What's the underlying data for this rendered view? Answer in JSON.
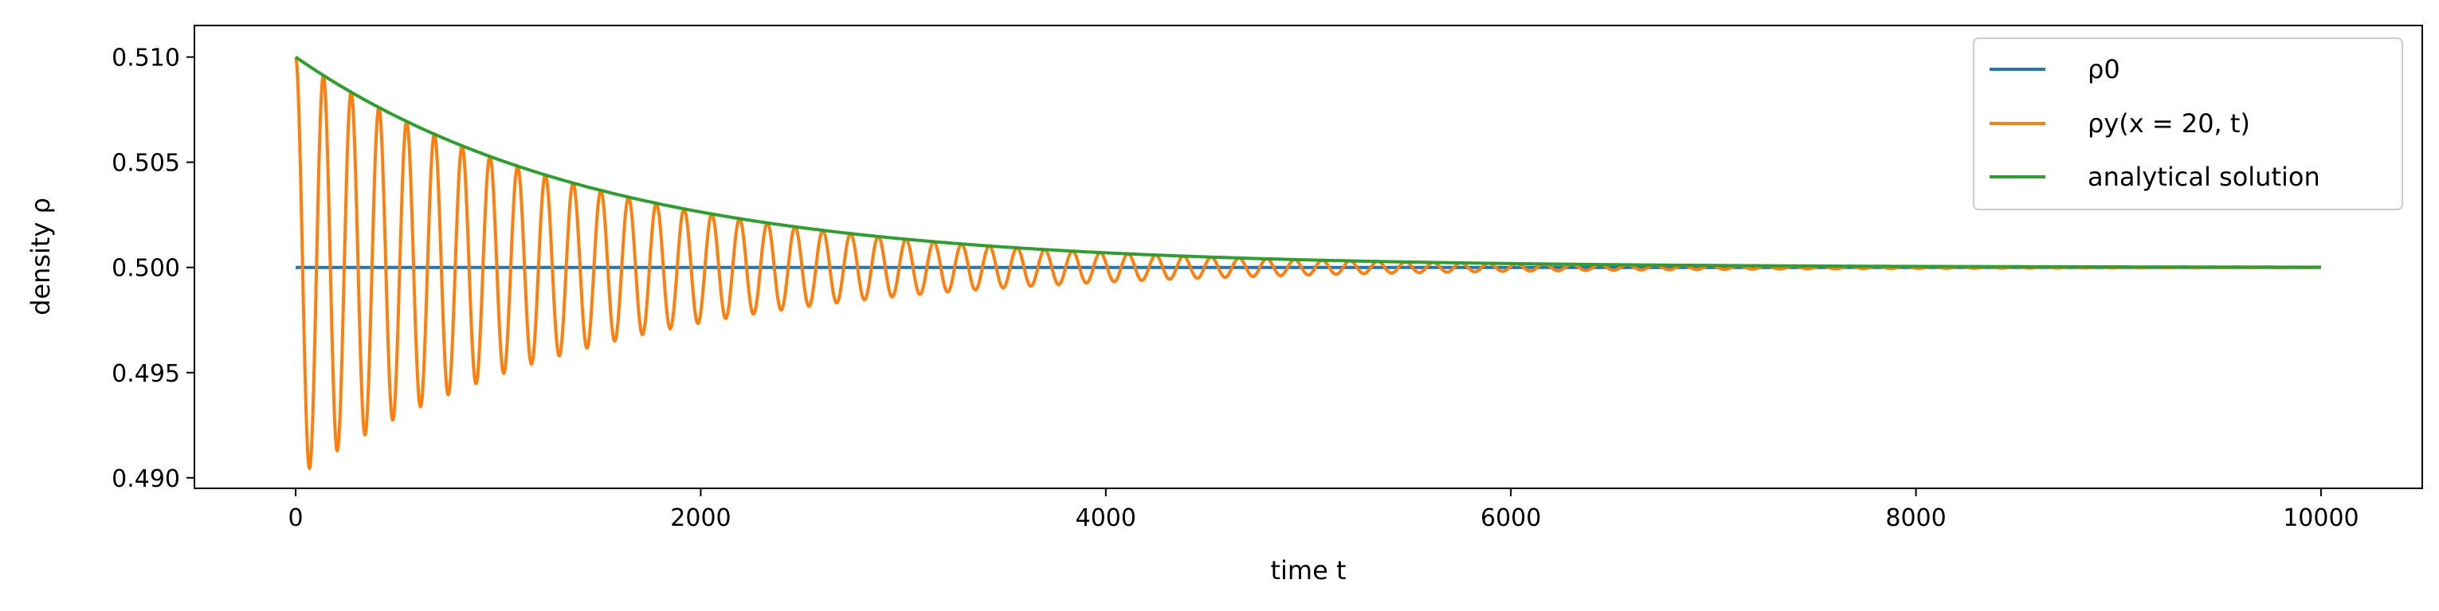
{
  "chart_data": {
    "type": "line",
    "xlabel": "time t",
    "ylabel": "density ρ",
    "xlim": [
      -500,
      10500
    ],
    "ylim": [
      0.4895,
      0.5115
    ],
    "x_ticks": [
      0,
      2000,
      4000,
      6000,
      8000,
      10000
    ],
    "x_tick_labels": [
      "0",
      "2000",
      "4000",
      "6000",
      "8000",
      "10000"
    ],
    "y_ticks": [
      0.49,
      0.495,
      0.5,
      0.505,
      0.51
    ],
    "y_tick_labels": [
      "0.490",
      "0.495",
      "0.500",
      "0.505",
      "0.510"
    ],
    "grid": false,
    "legend_position": "top-right",
    "series": [
      {
        "name": "ρ0",
        "color": "#1f77b4",
        "kind": "constant",
        "x": [
          0,
          10000
        ],
        "y": [
          0.5,
          0.5
        ]
      },
      {
        "name": "ρy(x = 20, t)",
        "color": "#ff7f0e",
        "kind": "damped_cosine",
        "x_range": [
          0,
          10000
        ],
        "offset": 0.5,
        "amplitude": 0.01,
        "decay_time": 1500,
        "period": 137,
        "initial_value": 0.51,
        "first_minimum": {
          "x": 68,
          "y": 0.4905
        }
      },
      {
        "name": "analytical solution",
        "color": "#2ca02c",
        "kind": "decaying_envelope",
        "x_range": [
          0,
          10000
        ],
        "offset": 0.5,
        "amplitude": 0.01,
        "decay_time": 1500,
        "samples": [
          {
            "x": 0,
            "y": 0.51
          },
          {
            "x": 1000,
            "y": 0.5051
          },
          {
            "x": 2000,
            "y": 0.5026
          },
          {
            "x": 4000,
            "y": 0.5007
          },
          {
            "x": 6000,
            "y": 0.5002
          },
          {
            "x": 10000,
            "y": 0.5
          }
        ]
      }
    ]
  }
}
